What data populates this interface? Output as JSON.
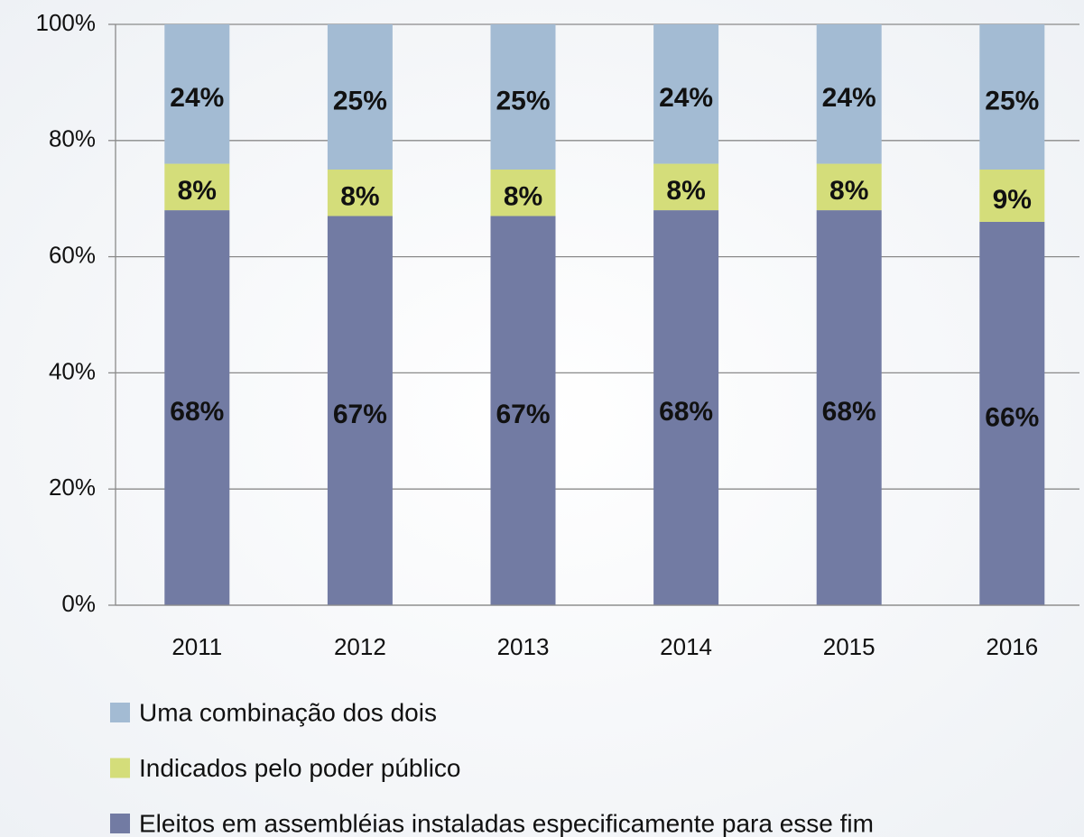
{
  "chart_data": {
    "type": "stacked_bar",
    "categories": [
      "2011",
      "2012",
      "2013",
      "2014",
      "2015",
      "2016"
    ],
    "series": [
      {
        "name": "Eleitos em assembléias instaladas especificamente para esse fim",
        "color": "#727ba3",
        "values": [
          68,
          67,
          67,
          68,
          68,
          66
        ],
        "value_labels": [
          "68%",
          "67%",
          "67%",
          "68%",
          "68%",
          "66%"
        ]
      },
      {
        "name": "Indicados pelo poder público",
        "color": "#d4dd7a",
        "values": [
          8,
          8,
          8,
          8,
          8,
          9
        ],
        "value_labels": [
          "8%",
          "8%",
          "8%",
          "8%",
          "8%",
          "9%"
        ]
      },
      {
        "name": "Uma combinação dos dois",
        "color": "#a3bbd3",
        "values": [
          24,
          25,
          25,
          24,
          24,
          25
        ],
        "value_labels": [
          "24%",
          "25%",
          "25%",
          "24%",
          "24%",
          "25%"
        ]
      }
    ],
    "ylim": [
      0,
      100
    ],
    "yticks": [
      {
        "value": 0,
        "label": "0%"
      },
      {
        "value": 20,
        "label": "20%"
      },
      {
        "value": 40,
        "label": "40%"
      },
      {
        "value": 60,
        "label": "60%"
      },
      {
        "value": 80,
        "label": "80%"
      },
      {
        "value": 100,
        "label": "100%"
      }
    ],
    "grid": true
  }
}
